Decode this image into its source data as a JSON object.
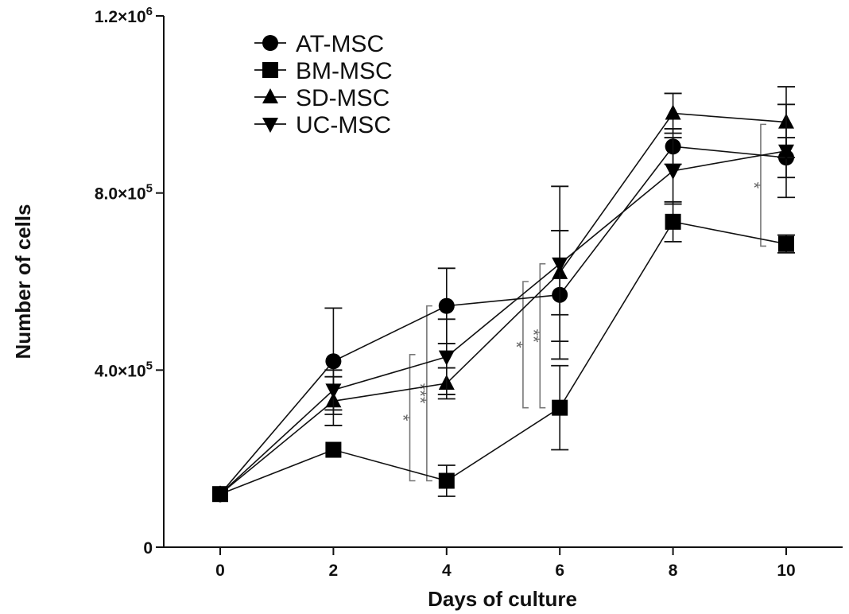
{
  "chart_data": {
    "type": "line",
    "xlabel": "Days of culture",
    "ylabel": "Number of cells",
    "x": [
      0,
      2,
      4,
      6,
      8,
      10
    ],
    "xlim": [
      -1,
      11
    ],
    "ylim": [
      0,
      1200000
    ],
    "x_ticks": [
      "0",
      "2",
      "4",
      "6",
      "8",
      "10"
    ],
    "y_ticks": [
      {
        "value": 0,
        "base": "0",
        "exp": ""
      },
      {
        "value": 400000,
        "base": "4.0×10",
        "exp": "5"
      },
      {
        "value": 800000,
        "base": "8.0×10",
        "exp": "5"
      },
      {
        "value": 1200000,
        "base": "1.2×10",
        "exp": "6"
      }
    ],
    "grid": false,
    "legend_position": "top-left",
    "series": [
      {
        "name": "AT-MSC",
        "marker": "circle",
        "values": [
          120000,
          420000,
          545000,
          570000,
          905000,
          880000
        ],
        "errors": [
          0,
          120000,
          85000,
          145000,
          40000,
          45000
        ]
      },
      {
        "name": "BM-MSC",
        "marker": "square",
        "values": [
          120000,
          220000,
          150000,
          315000,
          735000,
          685000
        ],
        "errors": [
          0,
          0,
          35000,
          95000,
          45000,
          20000
        ]
      },
      {
        "name": "SD-MSC",
        "marker": "triangle-up",
        "values": [
          120000,
          330000,
          370000,
          620000,
          980000,
          960000
        ],
        "errors": [
          0,
          55000,
          35000,
          95000,
          45000,
          80000
        ]
      },
      {
        "name": "UC-MSC",
        "marker": "triangle-down",
        "values": [
          120000,
          355000,
          430000,
          640000,
          850000,
          895000
        ],
        "errors": [
          0,
          45000,
          85000,
          175000,
          75000,
          105000
        ]
      }
    ],
    "annotations": [
      {
        "label": "*",
        "x": 3.35,
        "y_low": 150000,
        "y_high": 435000
      },
      {
        "label": "***",
        "x": 3.65,
        "y_low": 150000,
        "y_high": 545000
      },
      {
        "label": "*",
        "x": 5.35,
        "y_low": 315000,
        "y_high": 600000
      },
      {
        "label": "**",
        "x": 5.65,
        "y_low": 315000,
        "y_high": 640000
      },
      {
        "label": "*",
        "x": 9.55,
        "y_low": 680000,
        "y_high": 955000
      }
    ]
  }
}
